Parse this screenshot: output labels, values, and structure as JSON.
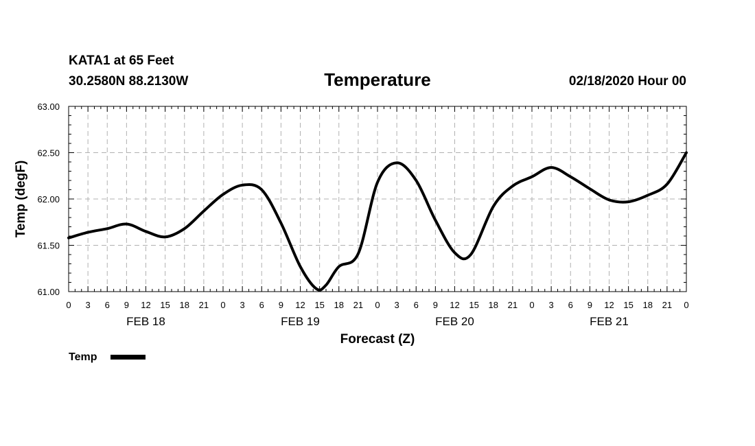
{
  "header": {
    "station": "KATA1 at 65 Feet",
    "coords": "30.2580N 88.2130W",
    "datetime": "02/18/2020 Hour 00"
  },
  "chart_data": {
    "type": "line",
    "title": "Temperature",
    "xlabel": "Forecast (Z)",
    "ylabel": "Temp (degF)",
    "ylim": [
      61.0,
      63.0
    ],
    "yticks": [
      "61.00",
      "61.50",
      "62.00",
      "62.50",
      "63.00"
    ],
    "x_hours_range": [
      0,
      96
    ],
    "x_tick_labels": [
      "0",
      "3",
      "6",
      "9",
      "12",
      "15",
      "18",
      "21",
      "0",
      "3",
      "6",
      "9",
      "12",
      "15",
      "18",
      "21",
      "0",
      "3",
      "6",
      "9",
      "12",
      "15",
      "18",
      "21",
      "0",
      "3",
      "6",
      "9",
      "12",
      "15",
      "18",
      "21",
      "0"
    ],
    "day_labels": [
      {
        "label": "FEB 18",
        "hour": 12
      },
      {
        "label": "FEB 19",
        "hour": 36
      },
      {
        "label": "FEB 20",
        "hour": 60
      },
      {
        "label": "FEB 21",
        "hour": 84
      }
    ],
    "grid": true,
    "legend": "bottom-left",
    "series": [
      {
        "name": "Temp",
        "color": "#000000",
        "x": [
          0,
          3,
          6,
          9,
          12,
          15,
          18,
          21,
          24,
          27,
          30,
          33,
          36,
          38.5,
          40,
          42,
          45,
          48,
          51,
          54,
          57,
          60,
          62.5,
          66,
          69,
          72,
          75,
          78,
          81,
          84,
          87,
          90,
          93,
          96
        ],
        "values": [
          61.58,
          61.64,
          61.68,
          61.73,
          61.65,
          61.59,
          61.68,
          61.87,
          62.05,
          62.15,
          62.1,
          61.74,
          61.27,
          61.03,
          61.07,
          61.27,
          61.41,
          62.18,
          62.39,
          62.2,
          61.77,
          61.42,
          61.4,
          61.92,
          62.14,
          62.24,
          62.34,
          62.24,
          62.11,
          61.99,
          61.97,
          62.04,
          62.16,
          62.5
        ]
      }
    ]
  }
}
